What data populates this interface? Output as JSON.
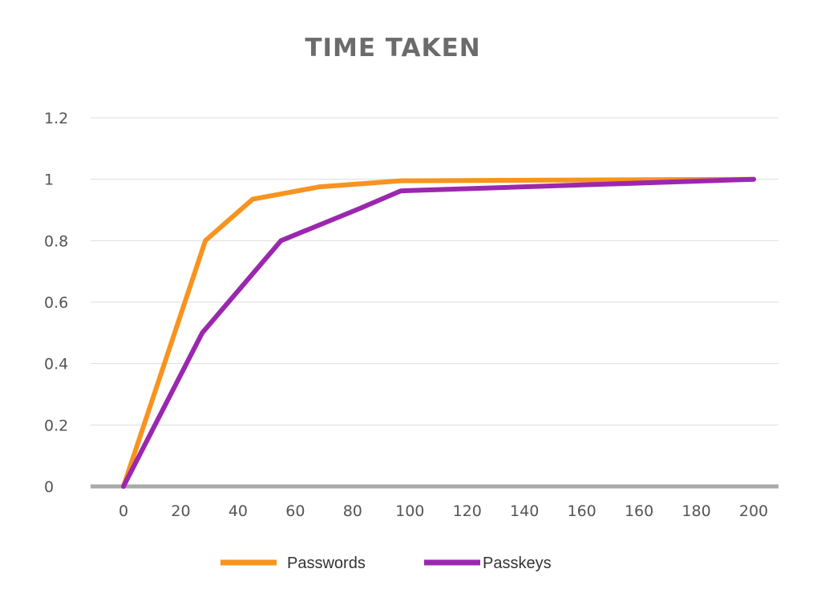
{
  "chart_data": {
    "type": "line",
    "title": "TIME TAKEN",
    "x": [
      0,
      20,
      40,
      60,
      80,
      100,
      120,
      140,
      160,
      160,
      180,
      200
    ],
    "x_tick_labels": [
      "0",
      "20",
      "40",
      "60",
      "80",
      "100",
      "120",
      "140",
      "160",
      "160",
      "180",
      "200"
    ],
    "y_ticks": [
      "0",
      "0.2",
      "0.4",
      "0.6",
      "0.8",
      "1",
      "1.2"
    ],
    "ylim": [
      0,
      1.2
    ],
    "grid": true,
    "legend_position": "bottom",
    "series": [
      {
        "name": "Passwords",
        "color": "#f7931e",
        "points": [
          [
            0,
            0
          ],
          [
            26,
            0.8
          ],
          [
            41,
            0.935
          ],
          [
            62,
            0.975
          ],
          [
            88,
            0.995
          ],
          [
            200,
            1.0
          ]
        ]
      },
      {
        "name": "Passkeys",
        "color": "#9b27af",
        "points": [
          [
            0,
            0
          ],
          [
            25,
            0.5
          ],
          [
            50,
            0.8
          ],
          [
            75,
            0.905
          ],
          [
            88,
            0.962
          ],
          [
            200,
            1.0
          ]
        ]
      }
    ]
  }
}
